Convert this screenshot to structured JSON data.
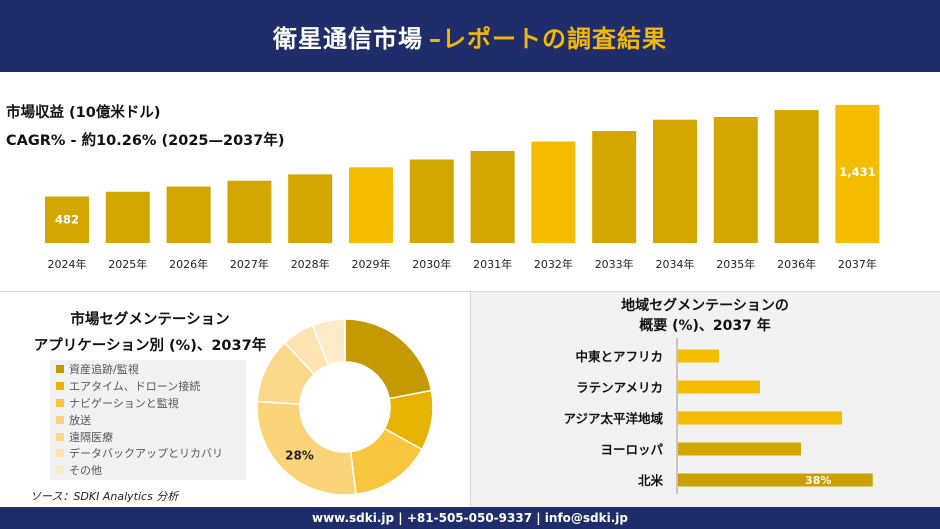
{
  "header": {
    "title_main": "衛星通信市場",
    "title_accent": "–レポートの調査結果"
  },
  "metrics": {
    "revenue_label": "市場収益 (10億米ドル)",
    "cagr_label": "CAGR% - 約10.26% (2025—2037年)"
  },
  "colors": {
    "navy": "#1f2d6b",
    "gold": "#f5b800",
    "dark_gold": "#c9a000"
  },
  "chart_data": [
    {
      "type": "bar",
      "categories": [
        "2024年",
        "2025年",
        "2026年",
        "2027年",
        "2028年",
        "2029年",
        "2030年",
        "2031年",
        "2032年",
        "2033年",
        "2034年",
        "2035年",
        "2036年",
        "2037年"
      ],
      "values": [
        482,
        531,
        585,
        645,
        711,
        784,
        865,
        954,
        1051,
        1159,
        1277,
        1305,
        1377,
        1431
      ],
      "data_labels": {
        "0": "482",
        "13": "1,431"
      },
      "colors": [
        "#d4a600",
        "#d4a600",
        "#d4a600",
        "#d4a600",
        "#d4a600",
        "#f5bd00",
        "#d4a600",
        "#d4a600",
        "#f5bd00",
        "#d4a600",
        "#d4a600",
        "#d4a600",
        "#d4a600",
        "#f5bd00"
      ],
      "ylim": [
        0,
        1450
      ]
    },
    {
      "type": "pie",
      "title_lines": [
        "市場セグメンテーション",
        "アプリケーション別 (%)、2037年"
      ],
      "labels": [
        "資産追跡/監視",
        "エアタイム、ドローン接続",
        "ナビゲーションと監視",
        "放送",
        "遠隔医療",
        "データバックアップとリカバリ",
        "その他"
      ],
      "values": [
        22,
        11,
        15,
        28,
        12,
        6,
        6
      ],
      "colors": [
        "#c49a00",
        "#e5b300",
        "#f9c640",
        "#fbd47a",
        "#fcd98a",
        "#fde4b0",
        "#fdebc7"
      ],
      "data_label": {
        "index": 3,
        "text": "28%"
      }
    },
    {
      "type": "bar",
      "orientation": "horizontal",
      "title_lines": [
        "地域セグメンテーションの",
        "概要 (%)、2037 年"
      ],
      "categories": [
        "中東とアフリカ",
        "ラテンアメリカ",
        "アジア太平洋地域",
        "ヨーロッパ",
        "北米"
      ],
      "values": [
        8,
        16,
        32,
        24,
        38
      ],
      "data_labels": {
        "4": "38%"
      },
      "colors": [
        "#f5bd00",
        "#f5bd00",
        "#f5bd00",
        "#d4a600",
        "#c9a000"
      ],
      "xlim": [
        0,
        40
      ]
    }
  ],
  "source": "ソース：SDKI Analytics 分析",
  "footer": "www.sdki.jp | +81-505-050-9337 | info@sdki.jp"
}
